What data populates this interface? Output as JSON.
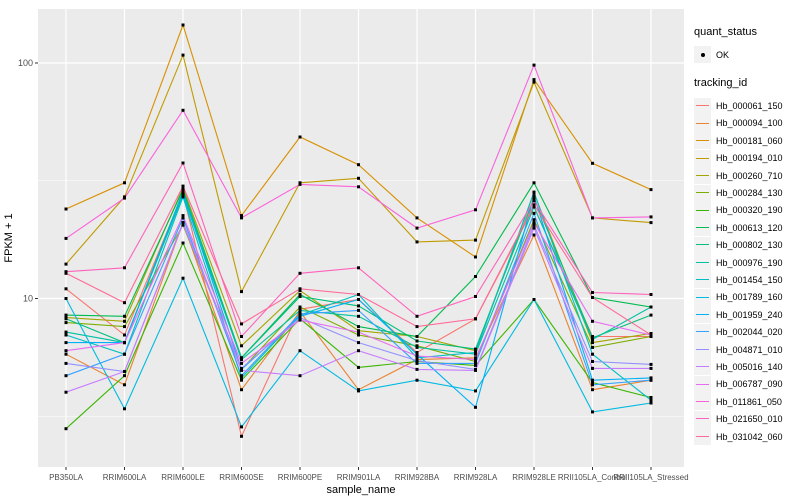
{
  "colors": {
    "panel_bg": "#EBEBEB",
    "grid": "#FFFFFF",
    "key_bg": "#F2F2F2",
    "axis_text": "#4D4D4D",
    "axis_title": "#000000",
    "point": "#000000"
  },
  "chart_data": {
    "type": "line",
    "title": "",
    "xlabel": "sample_name",
    "ylabel": "FPKM + 1",
    "y_scale": "log10",
    "y_ticks": [
      100,
      10
    ],
    "y_minor": [
      31.62,
      3.162
    ],
    "ylim": [
      1.9,
      171
    ],
    "grid": true,
    "legend_position": "right",
    "categories": [
      "PB350LA",
      "RRIM600LA",
      "RRIM600LE",
      "RRIM600SE",
      "RRIM600PE",
      "RRIM901LA",
      "RRIM928BA",
      "RRIM928LA",
      "RRIM928LE",
      "RRII105LA_Control",
      "RRII105LA_Stressed"
    ],
    "series": [
      {
        "name": "Hb_000061_150",
        "color": "#F8766D",
        "values": [
          11.0,
          7.0,
          28.0,
          2.6,
          9.0,
          9.9,
          5.9,
          8.2,
          24.5,
          6.9,
          6.9
        ]
      },
      {
        "name": "Hb_000094_100",
        "color": "#EA8331",
        "values": [
          5.8,
          4.3,
          21.0,
          4.1,
          8.8,
          4.1,
          5.5,
          5.6,
          18.6,
          4.1,
          4.5
        ]
      },
      {
        "name": "Hb_000181_060",
        "color": "#D89000",
        "values": [
          24.0,
          31.0,
          145.0,
          22.5,
          48.5,
          37.0,
          22.0,
          15.0,
          85.0,
          37.5,
          29.0
        ]
      },
      {
        "name": "Hb_000194_010",
        "color": "#C09B00",
        "values": [
          14.0,
          27.0,
          108.0,
          10.7,
          31.0,
          32.4,
          17.4,
          17.7,
          83.0,
          22.0,
          21.0
        ]
      },
      {
        "name": "Hb_000260_710",
        "color": "#A3A500",
        "values": [
          8.3,
          8.0,
          29.5,
          6.3,
          10.8,
          7.3,
          6.9,
          6.0,
          28.0,
          6.5,
          7.1
        ]
      },
      {
        "name": "Hb_000284_130",
        "color": "#7CAE00",
        "values": [
          7.9,
          7.6,
          20.5,
          5.0,
          9.2,
          7.0,
          6.3,
          5.4,
          21.6,
          6.2,
          6.9
        ]
      },
      {
        "name": "Hb_000320_190",
        "color": "#39B600",
        "values": [
          2.8,
          4.7,
          17.2,
          4.5,
          8.2,
          5.1,
          5.4,
          5.2,
          9.9,
          4.4,
          3.8
        ]
      },
      {
        "name": "Hb_000613_120",
        "color": "#00BB4E",
        "values": [
          8.5,
          8.4,
          29.0,
          5.6,
          10.4,
          7.6,
          6.9,
          12.4,
          31.0,
          10.1,
          9.2
        ]
      },
      {
        "name": "Hb_000802_130",
        "color": "#00BF7D",
        "values": [
          8.2,
          6.5,
          28.5,
          5.6,
          10.2,
          9.3,
          6.6,
          6.1,
          26.7,
          6.8,
          8.5
        ]
      },
      {
        "name": "Hb_000976_190",
        "color": "#00C1A3",
        "values": [
          7.2,
          6.5,
          27.5,
          5.5,
          8.9,
          8.4,
          6.2,
          5.8,
          24.5,
          6.7,
          9.2
        ]
      },
      {
        "name": "Hb_001454_150",
        "color": "#00BFC4",
        "values": [
          7.0,
          5.8,
          27.0,
          4.6,
          8.5,
          10.4,
          5.6,
          5.9,
          28.3,
          5.8,
          3.7
        ]
      },
      {
        "name": "Hb_001789_160",
        "color": "#00BAE0",
        "values": [
          10.0,
          3.4,
          12.2,
          2.85,
          6.0,
          4.05,
          4.5,
          4.05,
          9.9,
          3.3,
          3.6
        ]
      },
      {
        "name": "Hb_001959_240",
        "color": "#00B0F6",
        "values": [
          6.5,
          6.5,
          28.2,
          5.0,
          8.4,
          9.9,
          5.8,
          3.45,
          27.2,
          4.5,
          4.6
        ]
      },
      {
        "name": "Hb_002044_020",
        "color": "#35A2FF",
        "values": [
          4.7,
          5.8,
          22.0,
          4.7,
          8.6,
          8.9,
          5.3,
          5.3,
          23.0,
          4.3,
          4.5
        ]
      },
      {
        "name": "Hb_004871_010",
        "color": "#9590FF",
        "values": [
          5.3,
          4.9,
          21.0,
          5.05,
          8.3,
          6.5,
          5.45,
          5.0,
          20.5,
          5.4,
          5.25
        ]
      },
      {
        "name": "Hb_005016_140",
        "color": "#C77CFF",
        "values": [
          4.0,
          4.9,
          20.8,
          4.95,
          4.7,
          6.0,
          5.0,
          4.95,
          19.9,
          5.05,
          5.05
        ]
      },
      {
        "name": "Hb_006787_090",
        "color": "#E76BF3",
        "values": [
          6.0,
          6.5,
          22.5,
          5.3,
          8.1,
          7.2,
          5.7,
          5.5,
          21.0,
          8.0,
          7.0
        ]
      },
      {
        "name": "Hb_011861_050",
        "color": "#FA62DB",
        "values": [
          18.0,
          26.7,
          63.0,
          22.0,
          30.5,
          29.8,
          19.9,
          23.8,
          98.0,
          22.0,
          22.2
        ]
      },
      {
        "name": "Hb_021650_010",
        "color": "#FF62BC",
        "values": [
          13.0,
          13.5,
          37.6,
          6.9,
          12.8,
          13.5,
          8.4,
          10.2,
          26.0,
          10.6,
          10.4
        ]
      },
      {
        "name": "Hb_031042_060",
        "color": "#FF6A98",
        "values": [
          12.8,
          9.6,
          30.0,
          7.8,
          11.0,
          10.4,
          7.6,
          8.2,
          25.0,
          10.1,
          7.0
        ]
      }
    ],
    "legend": {
      "quant_status_title": "quant_status",
      "ok_label": "OK",
      "tracking_id_title": "tracking_id"
    }
  }
}
